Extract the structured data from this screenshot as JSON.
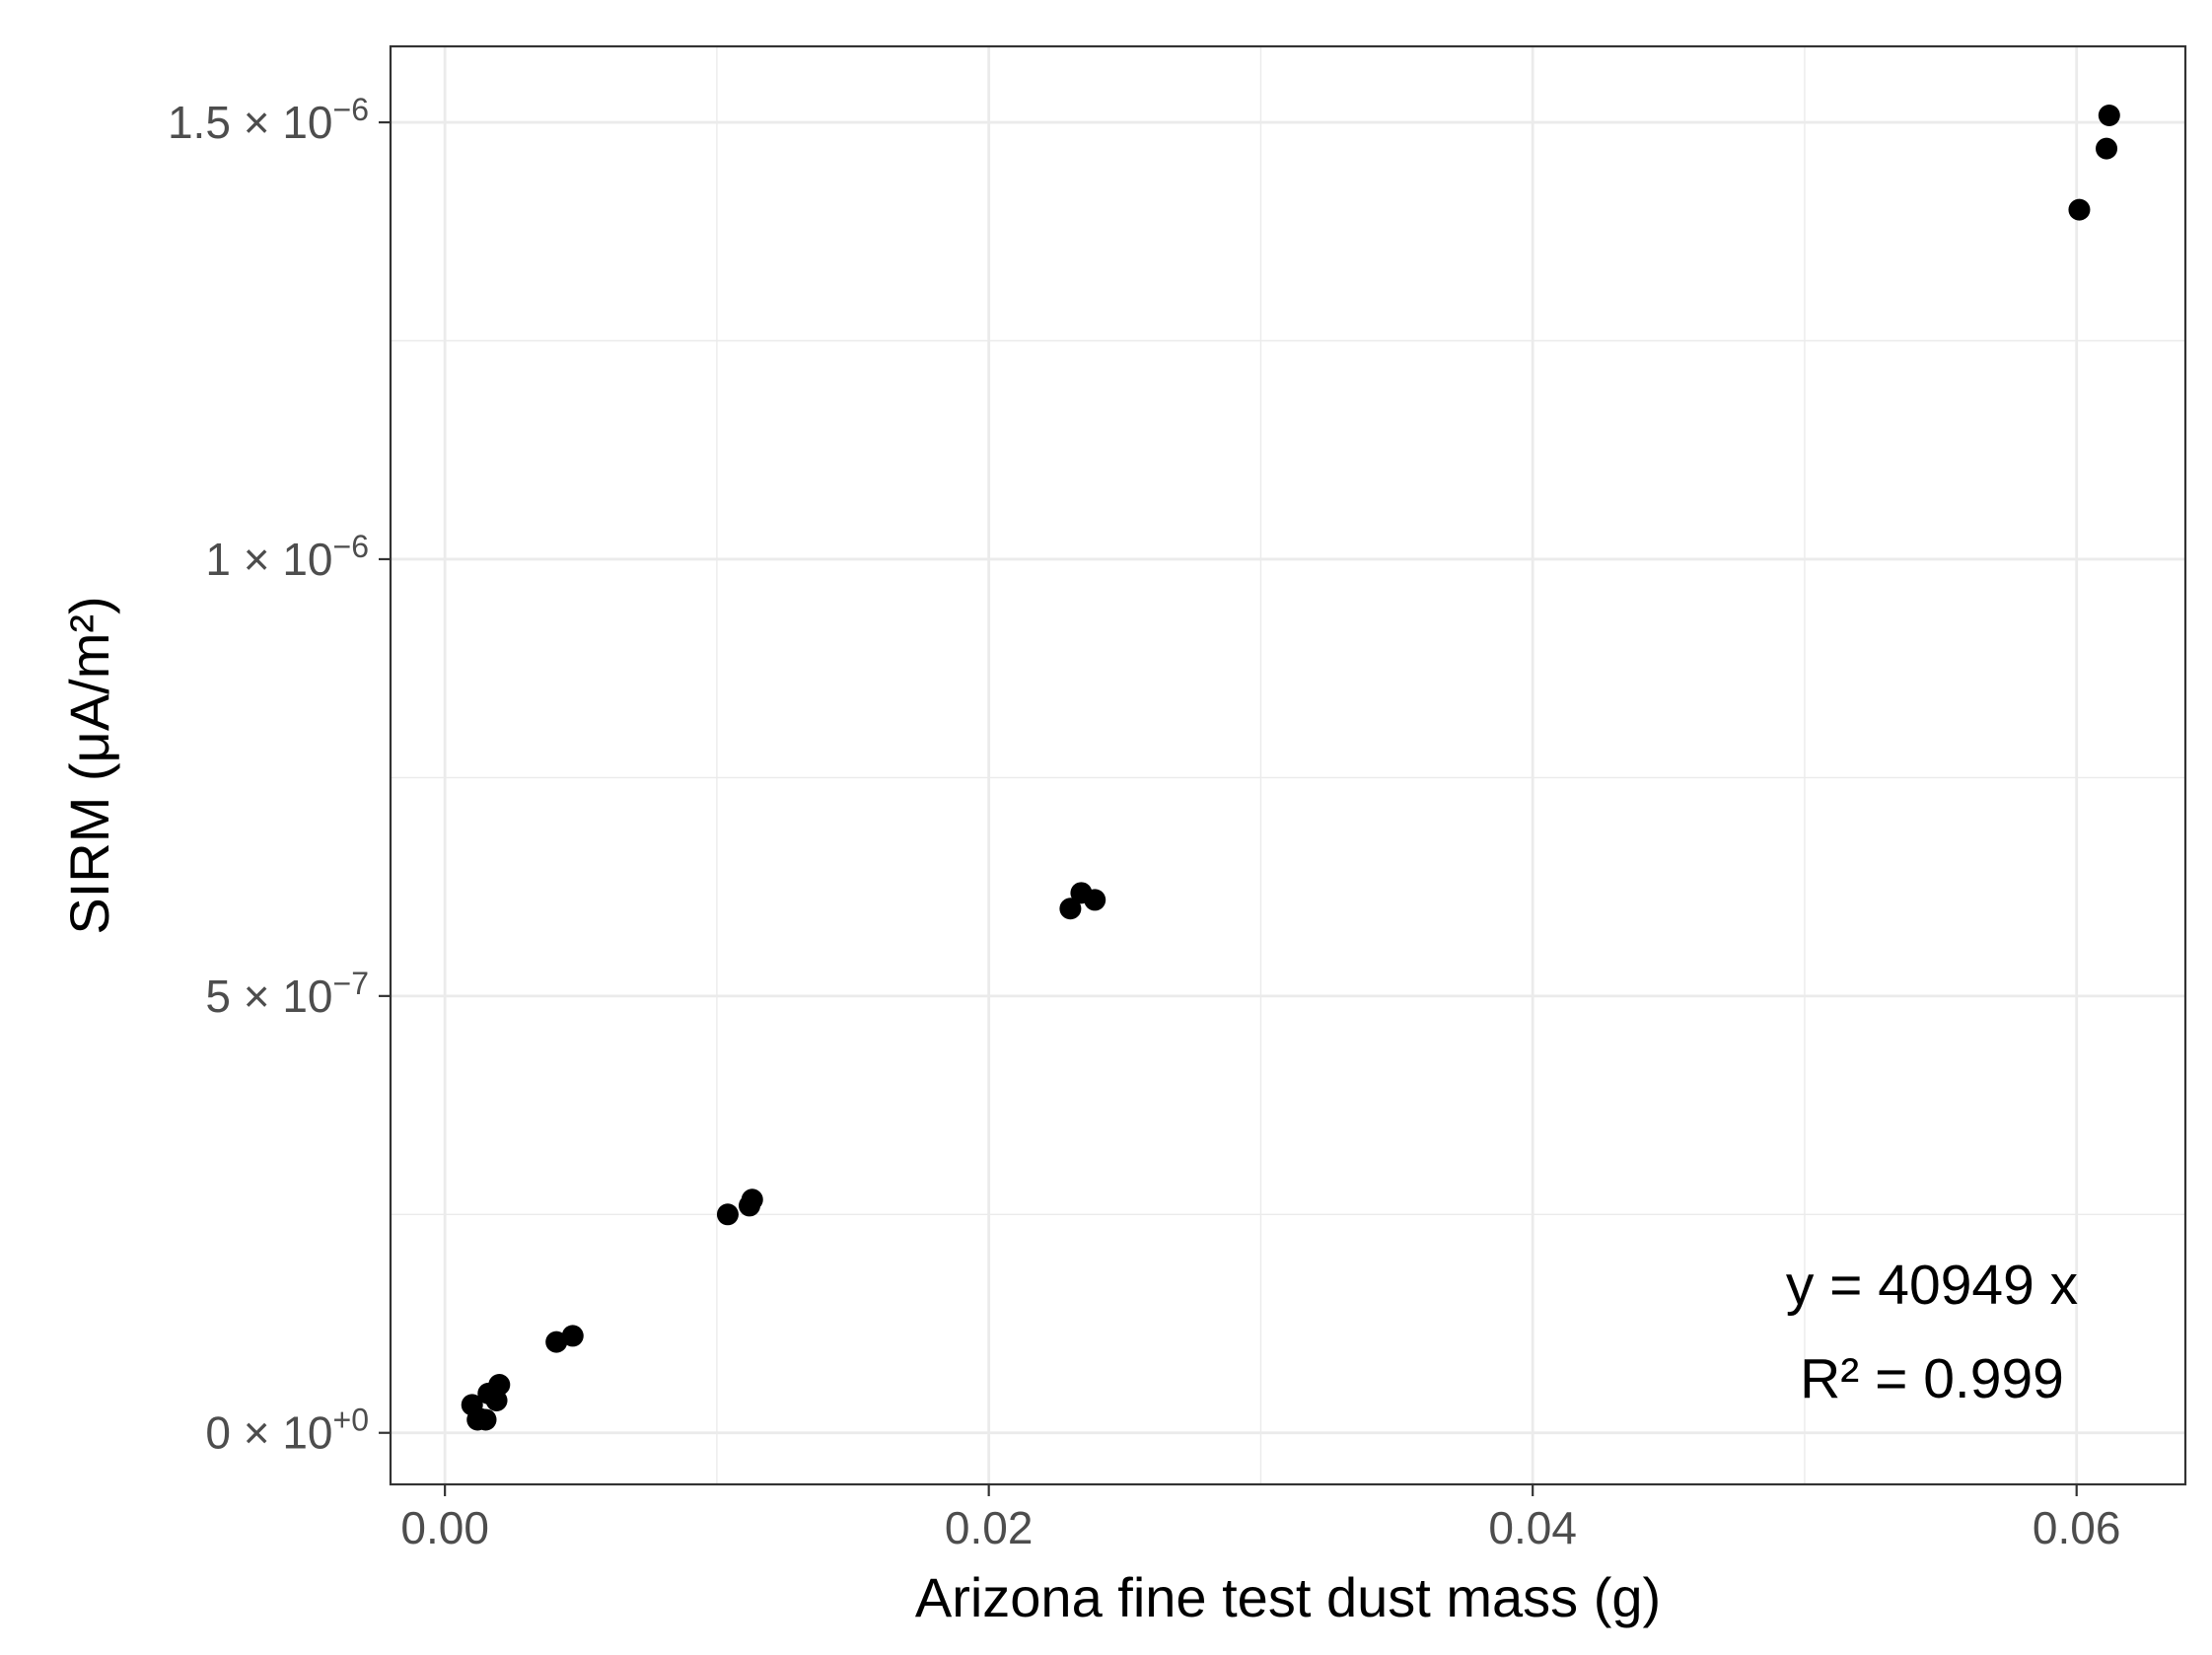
{
  "chart_data": {
    "type": "scatter",
    "xlabel": "Arizona fine test dust mass (g)",
    "ylabel": "SIRM (μA/m²)",
    "xlim": [
      -0.002,
      0.064
    ],
    "ylim": [
      -5.9e-08,
      1.587e-06
    ],
    "x_ticks": [
      {
        "value": 0.0,
        "label": "0.00"
      },
      {
        "value": 0.02,
        "label": "0.02"
      },
      {
        "value": 0.04,
        "label": "0.04"
      },
      {
        "value": 0.06,
        "label": "0.06"
      }
    ],
    "y_ticks": [
      {
        "value": 0,
        "mant": "0",
        "exp": "+0"
      },
      {
        "value": 5e-07,
        "mant": "5",
        "exp": "−7"
      },
      {
        "value": 1e-06,
        "mant": "1",
        "exp": "−6"
      },
      {
        "value": 1.5e-06,
        "mant": "1.5",
        "exp": "−6"
      }
    ],
    "grid": true,
    "points": [
      {
        "x": 0.001,
        "y": 3.2e-08
      },
      {
        "x": 0.0012,
        "y": 1.5e-08
      },
      {
        "x": 0.0013,
        "y": 1.6e-08
      },
      {
        "x": 0.0015,
        "y": 1.5e-08
      },
      {
        "x": 0.0016,
        "y": 4.5e-08
      },
      {
        "x": 0.0019,
        "y": 3.7e-08
      },
      {
        "x": 0.002,
        "y": 5.5e-08
      },
      {
        "x": 0.0041,
        "y": 1.04e-07
      },
      {
        "x": 0.0047,
        "y": 1.11e-07
      },
      {
        "x": 0.0104,
        "y": 2.5e-07
      },
      {
        "x": 0.0112,
        "y": 2.6e-07
      },
      {
        "x": 0.0113,
        "y": 2.67e-07
      },
      {
        "x": 0.023,
        "y": 6e-07
      },
      {
        "x": 0.0234,
        "y": 6.18e-07
      },
      {
        "x": 0.0239,
        "y": 6.1e-07
      },
      {
        "x": 0.0601,
        "y": 1.4e-06
      },
      {
        "x": 0.0611,
        "y": 1.47e-06
      },
      {
        "x": 0.0612,
        "y": 1.508e-06
      }
    ],
    "fit": {
      "slope": 40949,
      "intercept": 0,
      "x_range": [
        0.001,
        0.0612
      ]
    },
    "annotations": {
      "equation": "y = 40949 x",
      "r2": "R² = 0.999"
    }
  }
}
